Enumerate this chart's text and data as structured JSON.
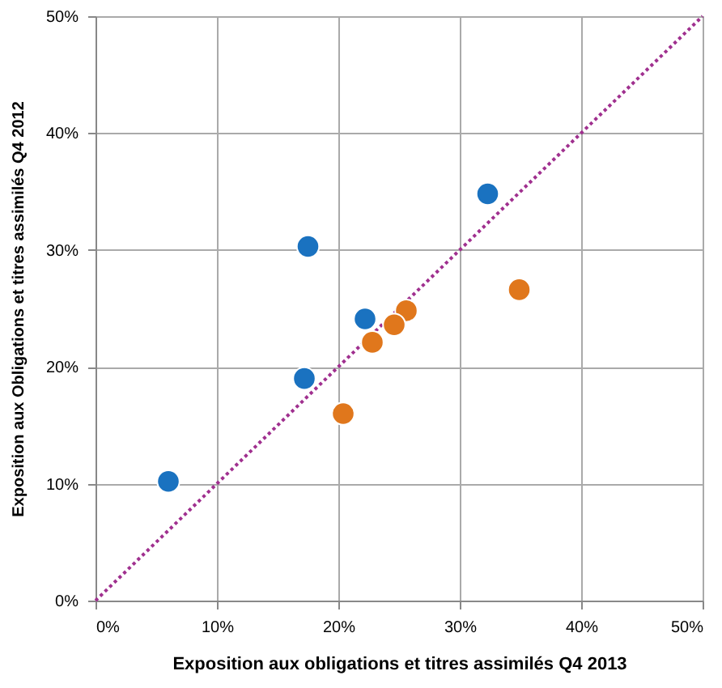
{
  "chart_data": {
    "type": "scatter",
    "xlabel": "Exposition aux obligations et titres assimilés Q4 2013",
    "ylabel": "Exposition aux Obligations et titres assimilés Q4 2012",
    "xlim": [
      0,
      50
    ],
    "ylim": [
      0,
      50
    ],
    "xticks": [
      {
        "value": 0,
        "label": "0%"
      },
      {
        "value": 10,
        "label": "10%"
      },
      {
        "value": 20,
        "label": "20%"
      },
      {
        "value": 30,
        "label": "30%"
      },
      {
        "value": 40,
        "label": "40%"
      },
      {
        "value": 50,
        "label": "50%"
      }
    ],
    "yticks": [
      {
        "value": 0,
        "label": "0%"
      },
      {
        "value": 10,
        "label": "10%"
      },
      {
        "value": 20,
        "label": "20%"
      },
      {
        "value": 30,
        "label": "30%"
      },
      {
        "value": 40,
        "label": "40%"
      },
      {
        "value": 50,
        "label": "50%"
      }
    ],
    "grid": true,
    "marker": "circle",
    "series": [
      {
        "type": "line",
        "color": "#a0308f",
        "line_style": "dotted",
        "marker": "none",
        "x": [
          0,
          50
        ],
        "values": [
          0,
          50
        ]
      },
      {
        "color": "#1a72c0",
        "x": [
          32.3,
          17.5,
          22.2,
          17.2,
          6.0
        ],
        "values": [
          34.8,
          30.3,
          24.1,
          19.0,
          10.2
        ]
      },
      {
        "color": "#e0771c",
        "x": [
          34.9,
          25.6,
          24.6,
          22.8,
          20.4
        ],
        "values": [
          26.6,
          24.8,
          23.6,
          22.1,
          16.0
        ]
      }
    ]
  }
}
